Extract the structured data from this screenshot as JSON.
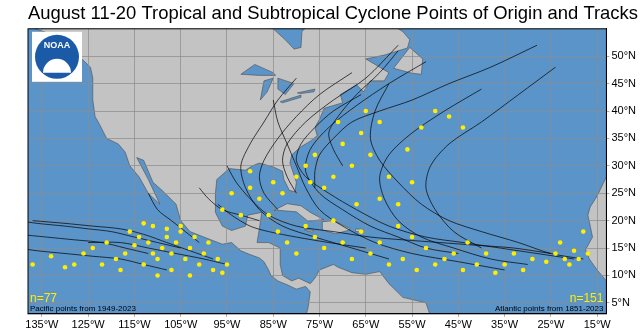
{
  "chart_data": {
    "type": "scatter",
    "title": "August 11-20 Tropical and Subtropical Cyclone Points of Origin and Tracks",
    "annotations": [
      "n=77",
      "Pacific points from 1949-2023",
      "n=151",
      "Atlantic points from 1851-2023",
      "NOAA"
    ],
    "xlim": [
      -138,
      -13
    ],
    "xticks": [
      {
        "value": -135,
        "label": "135°W"
      },
      {
        "value": -125,
        "label": "125°W"
      },
      {
        "value": -115,
        "label": "115°W"
      },
      {
        "value": -105,
        "label": "105°W"
      },
      {
        "value": -95,
        "label": "95°W"
      },
      {
        "value": -85,
        "label": "85°W"
      },
      {
        "value": -75,
        "label": "75°W"
      },
      {
        "value": -65,
        "label": "65°W"
      },
      {
        "value": -55,
        "label": "55°W"
      },
      {
        "value": -45,
        "label": "45°W"
      },
      {
        "value": -35,
        "label": "35°W"
      },
      {
        "value": -25,
        "label": "25°W"
      },
      {
        "value": -15,
        "label": "15°W"
      }
    ],
    "ylim": [
      3,
      55
    ],
    "yticks": [
      {
        "value": 5,
        "label": "5°N"
      },
      {
        "value": 10,
        "label": "10°N"
      },
      {
        "value": 15,
        "label": "15°N"
      },
      {
        "value": 20,
        "label": "20°N"
      },
      {
        "value": 25,
        "label": "25°N"
      },
      {
        "value": 30,
        "label": "30°N"
      },
      {
        "value": 35,
        "label": "35°N"
      },
      {
        "value": 40,
        "label": "40°N"
      },
      {
        "value": 45,
        "label": "45°N"
      },
      {
        "value": 50,
        "label": "50°N"
      }
    ],
    "grid": true,
    "series": [
      {
        "type": "line",
        "color": "#000000",
        "x": [
          -105,
          -110,
          -115,
          -120,
          -125,
          -130,
          -136,
          -140
        ],
        "values": [
          15,
          16,
          17,
          18,
          18.5,
          19,
          19.5,
          20
        ]
      },
      {
        "type": "line",
        "color": "#000000",
        "x": [
          -98,
          -103,
          -108,
          -113,
          -118,
          -124,
          -130,
          -137
        ],
        "values": [
          13,
          14.5,
          16,
          17.5,
          18.5,
          19,
          19.5,
          20
        ]
      },
      {
        "type": "line",
        "color": "#000000",
        "x": [
          -112,
          -117,
          -122,
          -128,
          -134,
          -140
        ],
        "values": [
          14,
          15,
          16,
          16.5,
          17,
          17.5
        ]
      },
      {
        "type": "line",
        "color": "#000000",
        "x": [
          -101,
          -104,
          -107,
          -110,
          -112
        ],
        "values": [
          16,
          18,
          20,
          22,
          25
        ]
      },
      {
        "type": "line",
        "color": "#000000",
        "x": [
          -95,
          -100,
          -106,
          -112,
          -118,
          -125
        ],
        "values": [
          12,
          13,
          14,
          15,
          16,
          16
        ]
      },
      {
        "type": "line",
        "color": "#000000",
        "x": [
          -108,
          -113,
          -118,
          -124,
          -130,
          -136,
          -140
        ],
        "values": [
          11,
          12,
          13,
          13.5,
          14,
          14.5,
          15
        ]
      },
      {
        "type": "line",
        "color": "#000000",
        "x": [
          -20,
          -28,
          -36,
          -44,
          -52,
          -60,
          -67,
          -73,
          -78,
          -80,
          -79,
          -76,
          -72,
          -66
        ],
        "values": [
          13,
          14,
          15,
          16,
          17,
          19,
          22,
          25,
          28,
          31,
          34,
          37,
          40,
          43
        ]
      },
      {
        "type": "line",
        "color": "#000000",
        "x": [
          -25,
          -33,
          -41,
          -49,
          -57,
          -64,
          -72,
          -80,
          -86,
          -90,
          -93,
          -95
        ],
        "values": [
          14,
          15,
          15.5,
          16,
          16.5,
          17,
          18,
          19,
          21,
          24,
          27,
          30
        ]
      },
      {
        "type": "line",
        "color": "#000000",
        "x": [
          -30,
          -38,
          -46,
          -53,
          -58,
          -61,
          -62,
          -60,
          -55,
          -48,
          -40
        ],
        "values": [
          12,
          13,
          15,
          17,
          20,
          24,
          28,
          32,
          36,
          40,
          44
        ]
      },
      {
        "type": "line",
        "color": "#000000",
        "x": [
          -45,
          -52,
          -58,
          -64,
          -70,
          -75,
          -78,
          -77,
          -73,
          -67,
          -60,
          -52
        ],
        "values": [
          14,
          15,
          17,
          19,
          22,
          25,
          29,
          33,
          37,
          41,
          45,
          49
        ]
      },
      {
        "type": "line",
        "color": "#000000",
        "x": [
          -60,
          -68,
          -76,
          -83,
          -88,
          -91,
          -92,
          -90,
          -87,
          -84,
          -80
        ],
        "values": [
          13,
          15,
          17,
          19,
          22,
          26,
          30,
          34,
          38,
          42,
          46
        ]
      },
      {
        "type": "line",
        "color": "#000000",
        "x": [
          -18,
          -25,
          -32,
          -40,
          -47,
          -53,
          -58,
          -62,
          -64,
          -63,
          -60
        ],
        "values": [
          13,
          14,
          16,
          18,
          20,
          23,
          27,
          31,
          35,
          40,
          45
        ]
      },
      {
        "type": "line",
        "color": "#000000",
        "x": [
          -84,
          -87,
          -88,
          -87,
          -84,
          -80,
          -75,
          -68
        ],
        "values": [
          22,
          25,
          28,
          31,
          35,
          39,
          43,
          47
        ]
      },
      {
        "type": "line",
        "color": "#000000",
        "x": [
          -76,
          -76,
          -75,
          -72,
          -68,
          -62,
          -55,
          -47,
          -38,
          -28
        ],
        "values": [
          26,
          29,
          32,
          35,
          38,
          40,
          42,
          45,
          48,
          52
        ]
      },
      {
        "type": "line",
        "color": "#000000",
        "x": [
          -88,
          -92,
          -96,
          -99,
          -101
        ],
        "values": [
          20,
          21,
          22,
          24,
          26
        ]
      },
      {
        "type": "line",
        "color": "#000000",
        "x": [
          -70,
          -72,
          -73,
          -71,
          -67,
          -62,
          -58
        ],
        "values": [
          30,
          33,
          36,
          39,
          43,
          47,
          51
        ]
      },
      {
        "type": "line",
        "color": "#000000",
        "x": [
          -40,
          -46,
          -50,
          -52,
          -51,
          -47,
          -40,
          -32,
          -24
        ],
        "values": [
          15,
          18,
          22,
          26,
          30,
          34,
          38,
          43,
          48
        ]
      },
      {
        "type": "line",
        "color": "#000000",
        "x": [
          -65,
          -73,
          -80,
          -86,
          -90,
          -94,
          -97
        ],
        "values": [
          15,
          16,
          17,
          18,
          19,
          21,
          23
        ]
      },
      {
        "type": "line",
        "color": "#000000",
        "x": [
          -80,
          -82,
          -83,
          -82,
          -78,
          -72,
          -65,
          -58
        ],
        "values": [
          25,
          28,
          31,
          34,
          38,
          42,
          46,
          52
        ]
      },
      {
        "type": "line",
        "color": "#000000",
        "x": [
          -35,
          -45,
          -55,
          -63,
          -70,
          -75,
          -78,
          -80,
          -82,
          -84,
          -85
        ],
        "values": [
          11,
          12.5,
          14,
          16,
          19,
          22,
          26,
          30,
          34,
          38,
          42
        ]
      },
      {
        "type": "scatter",
        "color": "#ffee00",
        "marker": "circle",
        "x": [
          -137,
          -133,
          -128,
          -126,
          -124,
          -121,
          -119,
          -117,
          -116,
          -115,
          -114,
          -113,
          -112,
          -111,
          -110,
          -109,
          -108,
          -107,
          -106,
          -105,
          -104,
          -103,
          -102,
          -101,
          -100,
          -99,
          -98,
          -97,
          -96,
          -95,
          -113,
          -110,
          -107,
          -105,
          -118,
          -122,
          -130,
          -108,
          -103,
          -111
        ],
        "values": [
          12,
          13.5,
          12,
          14,
          15,
          16,
          13,
          14,
          18,
          15.5,
          17,
          12,
          16,
          19,
          13,
          15,
          17,
          11,
          16,
          18,
          13,
          15,
          17,
          12,
          14,
          16,
          11,
          13,
          10.5,
          12,
          19.5,
          10,
          14,
          19,
          11,
          12,
          11.5,
          18.5,
          10,
          14
        ]
      },
      {
        "type": "scatter",
        "color": "#ffee00",
        "marker": "circle",
        "x": [
          -24,
          -22,
          -20,
          -18,
          -19,
          -21,
          -17,
          -23,
          -26,
          -29,
          -31,
          -33,
          -35,
          -37,
          -39,
          -41,
          -43,
          -44,
          -46,
          -48,
          -50,
          -52,
          -54,
          -55,
          -57,
          -58,
          -60,
          -62,
          -64,
          -66,
          -68,
          -70,
          -72,
          -74,
          -76,
          -78,
          -80,
          -82,
          -84,
          -86,
          -88,
          -90,
          -92,
          -94,
          -96,
          -85,
          -83,
          -80,
          -78,
          -76,
          -74,
          -72,
          -70,
          -68,
          -66,
          -64,
          -62,
          -60,
          -56,
          -53,
          -50,
          -47,
          -44,
          -58,
          -62,
          -55,
          -67,
          -77,
          -71,
          -90,
          -65
        ],
        "values": [
          14,
          13,
          14.5,
          18,
          13,
          12,
          14,
          16,
          12.5,
          13,
          11,
          14,
          12,
          10.5,
          14,
          12,
          16,
          11,
          14,
          13,
          12,
          15,
          11,
          17,
          13,
          19,
          12,
          16,
          14,
          18,
          13,
          16,
          20,
          15,
          17,
          19,
          14,
          16,
          18,
          21,
          24,
          26,
          21,
          25,
          22,
          27,
          25,
          28,
          30,
          32,
          26,
          28,
          34,
          30,
          36,
          32,
          38,
          28,
          33,
          37,
          40,
          39,
          37,
          23,
          24,
          27,
          23,
          27,
          38,
          29,
          40
        ]
      }
    ]
  }
}
